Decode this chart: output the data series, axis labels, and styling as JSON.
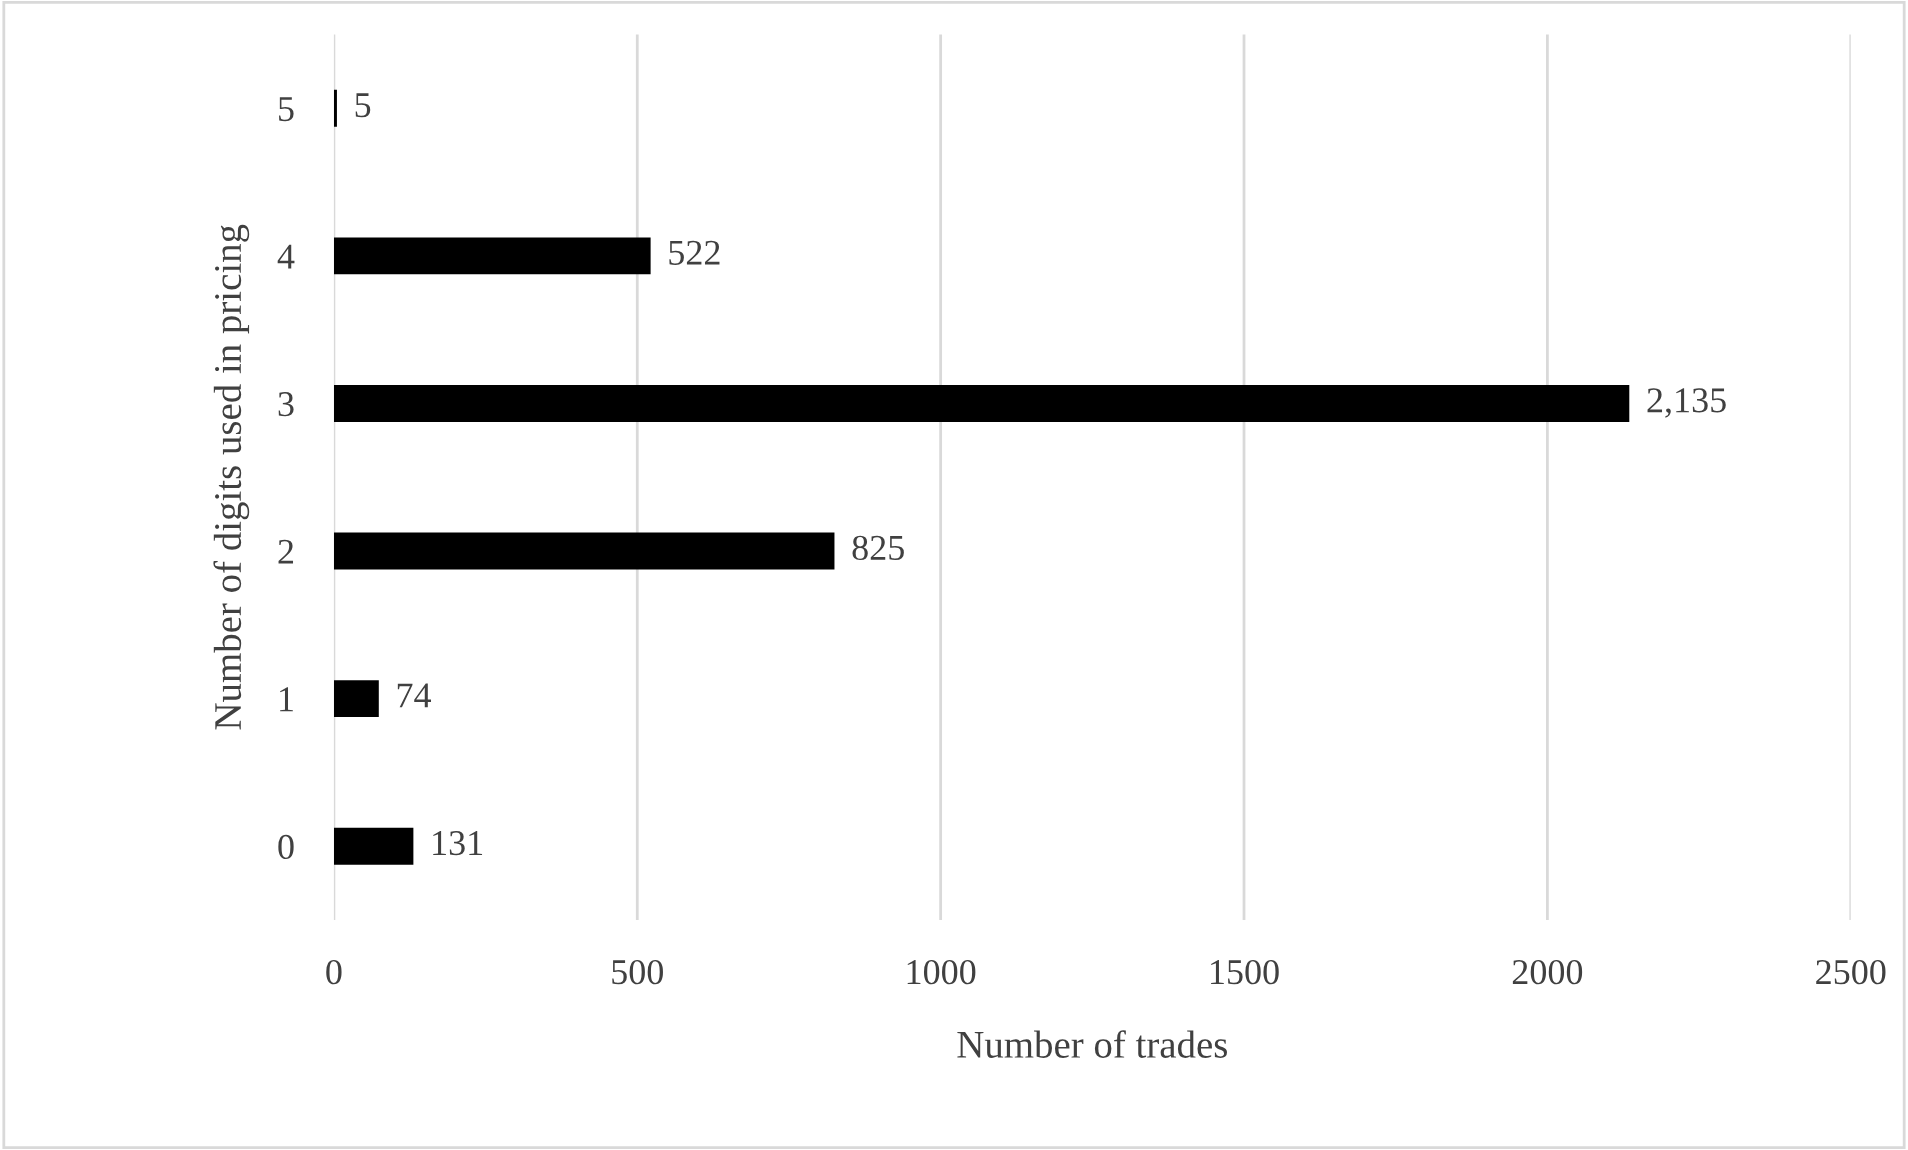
{
  "chart_data": {
    "type": "bar",
    "orientation": "horizontal",
    "xlabel": "Number of trades",
    "ylabel": "Number of digits used in pricing",
    "categories": [
      "5",
      "4",
      "3",
      "2",
      "1",
      "0"
    ],
    "values": [
      5,
      522,
      2135,
      825,
      74,
      131
    ],
    "value_labels": [
      "5",
      "522",
      "2,135",
      "825",
      "74",
      "131"
    ],
    "color": "#000000",
    "xlim": [
      0,
      2500
    ],
    "xticks": [
      0,
      500,
      1000,
      1500,
      2000,
      2500
    ],
    "grid": "x",
    "legend": false
  }
}
